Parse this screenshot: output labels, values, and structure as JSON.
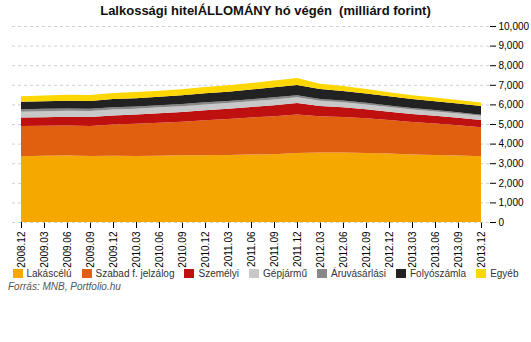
{
  "chart_data": {
    "type": "area",
    "stacked": true,
    "title": "Lalkossági hitelÁLLOMÁNY hó végén  (milliárd forint)",
    "source": "Forrás: MNB, Portfolio.hu",
    "categories": [
      "2008.12",
      "2009.03",
      "2009.06",
      "2009.09",
      "2009.12",
      "2010.03",
      "2010.06",
      "2010.09",
      "2010.12",
      "2011.03",
      "2011.06",
      "2011.09",
      "2011.12",
      "2012.03",
      "2012.06",
      "2012.09",
      "2012.12",
      "2013.03",
      "2013.06",
      "2013.09",
      "2013.12"
    ],
    "series": [
      {
        "name": "Lakáscélú",
        "color": "#F5A800",
        "values": [
          3350,
          3380,
          3390,
          3370,
          3380,
          3370,
          3380,
          3400,
          3400,
          3420,
          3440,
          3460,
          3520,
          3540,
          3540,
          3520,
          3490,
          3440,
          3420,
          3390,
          3350
        ]
      },
      {
        "name": "Szabad f. jelzálog",
        "color": "#E06010",
        "values": [
          1550,
          1530,
          1530,
          1530,
          1600,
          1640,
          1690,
          1720,
          1790,
          1840,
          1890,
          1940,
          1970,
          1860,
          1820,
          1770,
          1710,
          1660,
          1600,
          1540,
          1480
        ]
      },
      {
        "name": "Személyi",
        "color": "#BF1010",
        "values": [
          430,
          440,
          450,
          460,
          460,
          470,
          480,
          490,
          510,
          520,
          540,
          560,
          580,
          520,
          490,
          460,
          430,
          410,
          400,
          390,
          380
        ]
      },
      {
        "name": "Gépjármű",
        "color": "#C8C8C8",
        "values": [
          300,
          305,
          305,
          300,
          300,
          300,
          300,
          300,
          295,
          290,
          290,
          295,
          290,
          265,
          255,
          245,
          235,
          225,
          218,
          212,
          205
        ]
      },
      {
        "name": "Áruvásárlási",
        "color": "#888888",
        "values": [
          120,
          120,
          120,
          118,
          117,
          115,
          113,
          112,
          110,
          108,
          106,
          105,
          103,
          95,
          90,
          85,
          80,
          75,
          70,
          66,
          62
        ]
      },
      {
        "name": "Folyószámla",
        "color": "#222222",
        "values": [
          380,
          390,
          395,
          400,
          415,
          425,
          430,
          440,
          460,
          470,
          490,
          510,
          530,
          500,
          490,
          480,
          470,
          460,
          455,
          450,
          445
        ]
      },
      {
        "name": "Egyéb",
        "color": "#FFD700",
        "values": [
          290,
          295,
          300,
          305,
          310,
          310,
          308,
          308,
          318,
          325,
          335,
          345,
          355,
          270,
          250,
          230,
          210,
          193,
          185,
          180,
          175
        ]
      }
    ],
    "ylim": [
      0,
      10000
    ],
    "yticks": [
      0,
      1000,
      2000,
      3000,
      4000,
      5000,
      6000,
      7000,
      8000,
      9000,
      10000
    ],
    "grid": true,
    "legend": "bottom"
  }
}
